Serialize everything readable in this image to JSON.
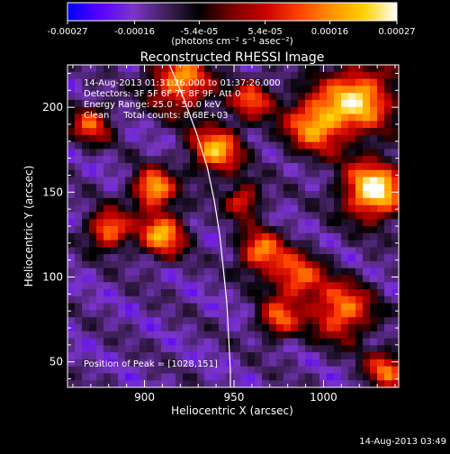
{
  "chart_data": {
    "type": "heatmap",
    "title": "Reconstructed RHESSI Image",
    "xlabel": "Heliocentric X (arcsec)",
    "ylabel": "Heliocentric Y (arcsec)",
    "xlim": [
      857,
      1042
    ],
    "ylim": [
      35,
      225
    ],
    "x_ticks": [
      900,
      950,
      1000
    ],
    "y_ticks": [
      50,
      100,
      150,
      200
    ],
    "colorbar": {
      "min": -0.00027,
      "max": 0.00027,
      "tick_values": [
        -0.00027,
        -0.00016,
        -5.4e-05,
        5.4e-05,
        0.00016,
        0.00027
      ],
      "tick_labels": [
        "-0.00027",
        "-0.00016",
        "-5.4e-05",
        "5.4e-05",
        "0.00016",
        "0.00027"
      ],
      "unit_label": "(photons cm⁻² s⁻¹ asec⁻²)",
      "colormap": [
        "#0000ff",
        "#5a00ff",
        "#7a35c8",
        "#40205a",
        "#000000",
        "#7a0000",
        "#c80000",
        "#ff4000",
        "#ff9000",
        "#ffd000",
        "#ffffff"
      ]
    },
    "info_lines": [
      "14-Aug-2013 01:31:26.000 to 01:37:26.000",
      "Detectors: 3F 5F 6F 7F 8F 9F, Att 0",
      "Energy Range: 25.0 - 50.0 keV",
      "Clean     Total counts: 8.68E+03"
    ],
    "peak_label": "Position of Peak = [1028,151]",
    "peak": [
      1028,
      151
    ],
    "limb_curve": [
      [
        914,
        225
      ],
      [
        922,
        205
      ],
      [
        929,
        185
      ],
      [
        935,
        165
      ],
      [
        939,
        145
      ],
      [
        942,
        125
      ],
      [
        944,
        105
      ],
      [
        946,
        85
      ],
      [
        947,
        65
      ],
      [
        948,
        45
      ],
      [
        948,
        35
      ]
    ],
    "bright_sources": [
      {
        "x": 1028,
        "y": 151,
        "value": 0.00027,
        "width": 12
      },
      {
        "x": 1020,
        "y": 205,
        "value": 0.0002,
        "width": 14
      },
      {
        "x": 995,
        "y": 190,
        "value": 0.00016,
        "width": 12
      },
      {
        "x": 940,
        "y": 175,
        "value": 0.00018,
        "width": 10
      },
      {
        "x": 905,
        "y": 152,
        "value": 0.0002,
        "width": 8
      },
      {
        "x": 880,
        "y": 128,
        "value": 0.00016,
        "width": 8
      },
      {
        "x": 910,
        "y": 125,
        "value": 0.00018,
        "width": 9
      },
      {
        "x": 965,
        "y": 115,
        "value": 0.00014,
        "width": 9
      },
      {
        "x": 1010,
        "y": 80,
        "value": 0.00015,
        "width": 12
      },
      {
        "x": 985,
        "y": 100,
        "value": 0.00012,
        "width": 10
      },
      {
        "x": 975,
        "y": 75,
        "value": 0.0001,
        "width": 8
      },
      {
        "x": 920,
        "y": 215,
        "value": 0.00017,
        "width": 12
      },
      {
        "x": 870,
        "y": 190,
        "value": 0.0001,
        "width": 8
      },
      {
        "x": 1035,
        "y": 45,
        "value": 0.00012,
        "width": 8
      },
      {
        "x": 955,
        "y": 145,
        "value": 9e-05,
        "width": 7
      },
      {
        "x": 960,
        "y": 205,
        "value": 0.00011,
        "width": 8
      }
    ],
    "grid": false,
    "legend": "none"
  },
  "footer_timestamp": "14-Aug-2013 03:49"
}
